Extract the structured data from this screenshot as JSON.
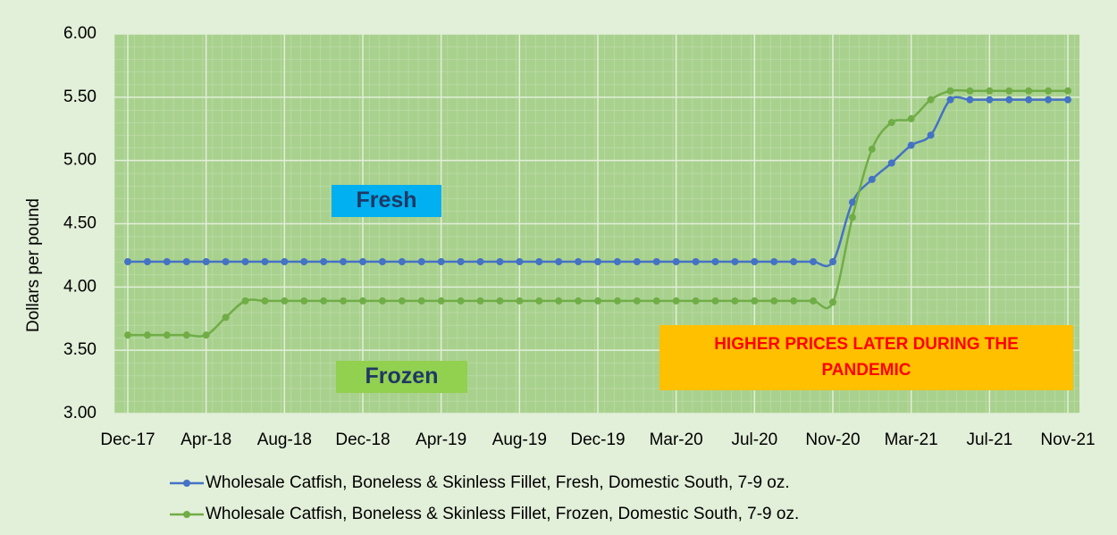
{
  "chart_data": {
    "type": "line",
    "y_label": "Dollars per pound",
    "categories": [
      "Dec-17",
      null,
      null,
      null,
      "Apr-18",
      null,
      null,
      null,
      "Aug-18",
      null,
      null,
      null,
      "Dec-18",
      null,
      null,
      null,
      "Apr-19",
      null,
      null,
      null,
      "Aug-19",
      null,
      null,
      null,
      "Dec-19",
      null,
      null,
      null,
      "Mar-20",
      null,
      null,
      null,
      "Jul-20",
      null,
      null,
      null,
      "Nov-20",
      null,
      null,
      null,
      "Mar-21",
      null,
      null,
      null,
      "Jul-21",
      null,
      null,
      null,
      "Nov-21"
    ],
    "series": [
      {
        "name": "Wholesale Catfish, Boneless & Skinless Fillet, Fresh, Domestic South, 7-9 oz.",
        "color": "#4472c4",
        "values": [
          4.2,
          4.2,
          4.2,
          4.2,
          4.2,
          4.2,
          4.2,
          4.2,
          4.2,
          4.2,
          4.2,
          4.2,
          4.2,
          4.2,
          4.2,
          4.2,
          4.2,
          4.2,
          4.2,
          4.2,
          4.2,
          4.2,
          4.2,
          4.2,
          4.2,
          4.2,
          4.2,
          4.2,
          4.2,
          4.2,
          4.2,
          4.2,
          4.2,
          4.2,
          4.2,
          4.2,
          4.2,
          4.67,
          4.85,
          4.98,
          5.12,
          5.2,
          5.48,
          5.48,
          5.48,
          5.48,
          5.48,
          5.48,
          5.48
        ]
      },
      {
        "name": "Wholesale Catfish, Boneless & Skinless Fillet, Frozen, Domestic South, 7-9 oz.",
        "color": "#70ad47",
        "values": [
          3.62,
          3.62,
          3.62,
          3.62,
          3.62,
          3.76,
          3.89,
          3.89,
          3.89,
          3.89,
          3.89,
          3.89,
          3.89,
          3.89,
          3.89,
          3.89,
          3.89,
          3.89,
          3.89,
          3.89,
          3.89,
          3.89,
          3.89,
          3.89,
          3.89,
          3.89,
          3.89,
          3.89,
          3.89,
          3.89,
          3.89,
          3.89,
          3.89,
          3.89,
          3.89,
          3.89,
          3.88,
          4.55,
          5.09,
          5.3,
          5.33,
          5.48,
          5.55,
          5.55,
          5.55,
          5.55,
          5.55,
          5.55,
          5.55
        ]
      }
    ],
    "ylim": [
      3,
      6
    ],
    "yticks": [
      {
        "value": 3,
        "label": "3.00"
      },
      {
        "value": 3.5,
        "label": "3.50"
      },
      {
        "value": 4,
        "label": "4.00"
      },
      {
        "value": 4.5,
        "label": "4.50"
      },
      {
        "value": 5,
        "label": "5.00"
      },
      {
        "value": 5.5,
        "label": "5.50"
      },
      {
        "value": 6,
        "label": "6.00"
      }
    ],
    "grid": true,
    "legend": "bottom",
    "annotations": [
      {
        "text": "Fresh",
        "color": "#1f3864",
        "background": "#00b0f0"
      },
      {
        "text": "Frozen",
        "color": "#1f3864",
        "background": "#92d050"
      },
      {
        "text": "HIGHER PRICES LATER DURING THE PANDEMIC",
        "color": "#ff0000",
        "background": "#ffc000"
      }
    ]
  }
}
